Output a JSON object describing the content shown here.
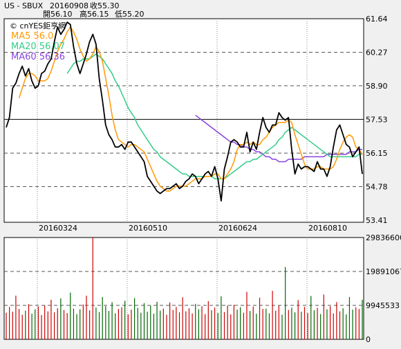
{
  "header": {
    "symbol": "US - SBUX",
    "date": "20160908",
    "close_label": "收55.30",
    "open_label": "開56.10",
    "high_label": "高56.15",
    "low_label": "低55.20"
  },
  "watermark": "© cnYES鉅亨網",
  "colors": {
    "price": "#000000",
    "ma5": "#ff9900",
    "ma20": "#33cc88",
    "ma60": "#8844dd",
    "vol_up": "#cc0000",
    "vol_down": "#006600",
    "grid": "#555555",
    "panel_bg": "#ffffff"
  },
  "chart_data": [
    {
      "type": "line",
      "x_ticks": [
        "20160324",
        "20160510",
        "20160624",
        "20160810"
      ],
      "y_ticks": [
        "61.64",
        "60.27",
        "58.90",
        "57.53",
        "56.15",
        "54.78",
        "53.41"
      ],
      "ylim": [
        53.41,
        61.64
      ],
      "dashed_levels": [
        60.27,
        58.9,
        56.15,
        54.78
      ],
      "solid_level": 57.53,
      "legend": [
        {
          "name": "MA5",
          "value": "56.0",
          "color_key": "ma5"
        },
        {
          "name": "MA20",
          "value": "56.07",
          "color_key": "ma20"
        },
        {
          "name": "MA60",
          "value": "56.36",
          "color_key": "ma60"
        }
      ],
      "series": {
        "close": [
          57.2,
          57.6,
          58.8,
          59.0,
          59.4,
          59.7,
          59.3,
          59.6,
          59.1,
          58.8,
          58.9,
          59.4,
          59.5,
          59.8,
          60.0,
          60.7,
          61.3,
          61.0,
          61.2,
          61.5,
          61.4,
          60.5,
          59.8,
          59.4,
          59.8,
          60.2,
          60.7,
          61.0,
          60.6,
          59.2,
          58.3,
          57.3,
          56.9,
          56.7,
          56.4,
          56.4,
          56.5,
          56.3,
          56.6,
          56.6,
          56.4,
          56.2,
          56.0,
          55.8,
          55.2,
          55.0,
          54.8,
          54.6,
          54.5,
          54.6,
          54.7,
          54.7,
          54.8,
          54.9,
          54.7,
          54.8,
          55.0,
          55.1,
          55.3,
          55.2,
          54.9,
          55.1,
          55.3,
          55.4,
          55.2,
          55.6,
          55.1,
          54.2,
          55.5,
          56.0,
          56.6,
          56.7,
          56.6,
          56.4,
          56.4,
          57.0,
          56.2,
          56.6,
          56.3,
          57.0,
          57.6,
          57.2,
          57.0,
          57.3,
          57.3,
          57.8,
          57.6,
          57.5,
          57.6,
          56.3,
          55.3,
          55.7,
          55.5,
          55.6,
          55.6,
          55.5,
          55.4,
          55.8,
          55.5,
          55.5,
          55.2,
          55.6,
          56.4,
          57.1,
          57.3,
          56.9,
          56.5,
          56.4,
          56.0,
          56.2,
          56.4,
          55.3
        ],
        "ma5": [
          null,
          null,
          null,
          null,
          58.4,
          58.8,
          59.2,
          59.4,
          59.4,
          59.3,
          59.1,
          59.1,
          59.1,
          59.2,
          59.5,
          59.9,
          60.3,
          60.6,
          60.8,
          61.1,
          61.3,
          61.1,
          60.8,
          60.4,
          60.1,
          59.9,
          60.0,
          60.2,
          60.5,
          60.3,
          59.9,
          59.2,
          58.5,
          57.7,
          57.1,
          56.7,
          56.6,
          56.5,
          56.4,
          56.5,
          56.5,
          56.4,
          56.3,
          56.2,
          55.9,
          55.6,
          55.3,
          55.0,
          54.8,
          54.7,
          54.6,
          54.6,
          54.7,
          54.8,
          54.8,
          54.8,
          54.8,
          54.9,
          55.0,
          55.1,
          55.1,
          55.1,
          55.2,
          55.2,
          55.2,
          55.3,
          55.3,
          55.1,
          55.1,
          55.3,
          55.5,
          55.8,
          56.3,
          56.5,
          56.5,
          56.6,
          56.5,
          56.6,
          56.5,
          56.5,
          56.7,
          56.8,
          57.0,
          57.2,
          57.3,
          57.4,
          57.4,
          57.4,
          57.5,
          57.4,
          56.9,
          56.5,
          56.1,
          55.7,
          55.5,
          55.5,
          55.5,
          55.6,
          55.6,
          55.5,
          55.5,
          55.5,
          55.6,
          55.9,
          56.3,
          56.6,
          56.8,
          56.9,
          56.8,
          56.4,
          56.3,
          56.1
        ],
        "ma20": [
          null,
          null,
          null,
          null,
          null,
          null,
          null,
          null,
          null,
          null,
          null,
          null,
          null,
          null,
          null,
          null,
          null,
          null,
          null,
          59.4,
          59.6,
          59.8,
          59.9,
          59.9,
          60.0,
          60.0,
          60.0,
          60.1,
          60.2,
          60.1,
          60.0,
          59.8,
          59.6,
          59.4,
          59.1,
          58.9,
          58.6,
          58.3,
          58.0,
          57.8,
          57.6,
          57.3,
          57.1,
          56.9,
          56.7,
          56.5,
          56.3,
          56.2,
          56.0,
          55.9,
          55.8,
          55.7,
          55.6,
          55.5,
          55.4,
          55.3,
          55.3,
          55.2,
          55.2,
          55.2,
          55.2,
          55.2,
          55.2,
          55.2,
          55.2,
          55.1,
          55.1,
          55.1,
          55.1,
          55.2,
          55.3,
          55.4,
          55.5,
          55.6,
          55.7,
          55.8,
          55.8,
          55.9,
          55.9,
          56.0,
          56.1,
          56.2,
          56.3,
          56.4,
          56.5,
          56.7,
          56.8,
          57.0,
          57.1,
          57.2,
          57.1,
          57.0,
          56.9,
          56.8,
          56.7,
          56.6,
          56.5,
          56.4,
          56.3,
          56.2,
          56.1,
          56.0,
          56.0,
          56.0,
          56.0,
          56.0,
          56.0,
          56.0,
          56.0,
          56.0,
          56.1,
          56.1
        ],
        "ma60": [
          null,
          null,
          null,
          null,
          null,
          null,
          null,
          null,
          null,
          null,
          null,
          null,
          null,
          null,
          null,
          null,
          null,
          null,
          null,
          null,
          null,
          null,
          null,
          null,
          null,
          null,
          null,
          null,
          null,
          null,
          null,
          null,
          null,
          null,
          null,
          null,
          null,
          null,
          null,
          null,
          null,
          null,
          null,
          null,
          null,
          null,
          null,
          null,
          null,
          null,
          null,
          null,
          null,
          null,
          null,
          null,
          null,
          null,
          null,
          57.7,
          57.6,
          57.5,
          57.4,
          57.3,
          57.2,
          57.1,
          57.0,
          56.9,
          56.8,
          56.7,
          56.6,
          56.6,
          56.5,
          56.5,
          56.4,
          56.4,
          56.3,
          56.3,
          56.2,
          56.2,
          56.1,
          56.0,
          56.0,
          55.9,
          55.9,
          55.8,
          55.8,
          55.8,
          55.9,
          55.9,
          55.9,
          55.9,
          55.9,
          56.0,
          56.0,
          56.0,
          56.0,
          56.0,
          56.0,
          56.0,
          56.1,
          56.1,
          56.1,
          56.1,
          56.1,
          56.1,
          56.1,
          56.2,
          56.2,
          56.2,
          56.3,
          56.3
        ]
      }
    },
    {
      "type": "bar",
      "y_ticks": [
        "29836600",
        "19891067",
        "9945533",
        "0"
      ],
      "ylim": [
        0,
        29836600
      ],
      "dashed_levels": [
        19891067,
        9945533
      ],
      "values": [
        7800000.0,
        9500000.0,
        8100000.0,
        12800000.0,
        8900000.0,
        7200000.0,
        8400000.0,
        10300000.0,
        7500000.0,
        8800000.0,
        9600000.0,
        7100000.0,
        9900000.0,
        8200000.0,
        11600000.0,
        7900000.0,
        9100000.0,
        12000000.0,
        8600000.0,
        7700000.0,
        13700000.0,
        9000000.0,
        7400000.0,
        8800000.0,
        10200000.0,
        12800000.0,
        8500000.0,
        29800000.0,
        9300000.0,
        8000000.0,
        12400000.0,
        9700000.0,
        8300000.0,
        10900000.0,
        7600000.0,
        8900000.0,
        9400000.0,
        11300000.0,
        7300000.0,
        8700000.0,
        12100000.0,
        9200000.0,
        7800000.0,
        10600000.0,
        8100000.0,
        9800000.0,
        7500000.0,
        11000000.0,
        8400000.0,
        9000000.0,
        7200000.0,
        10800000.0,
        8600000.0,
        9500000.0,
        7900000.0,
        12300000.0,
        8200000.0,
        9100000.0,
        7600000.0,
        10400000.0,
        8800000.0,
        9700000.0,
        7400000.0,
        11200000.0,
        8500000.0,
        9300000.0,
        7700000.0,
        12600000.0,
        8000000.0,
        9900000.0,
        7300000.0,
        10100000.0,
        8700000.0,
        9400000.0,
        7800000.0,
        13900000.0,
        8300000.0,
        9600000.0,
        7500000.0,
        12200000.0,
        8900000.0,
        9000000.0,
        7600000.0,
        14200000.0,
        8400000.0,
        9800000.0,
        7200000.0,
        21200000.0,
        8600000.0,
        9300000.0,
        7900000.0,
        11500000.0,
        8100000.0,
        9500000.0,
        7700000.0,
        12700000.0,
        8500000.0,
        9200000.0,
        7400000.0,
        13100000.0,
        8800000.0,
        9700000.0,
        7600000.0,
        10900000.0,
        8200000.0,
        9100000.0,
        7300000.0,
        12400000.0,
        8700000.0,
        9400000.0,
        8900000.0,
        11600000.0
      ]
    }
  ]
}
